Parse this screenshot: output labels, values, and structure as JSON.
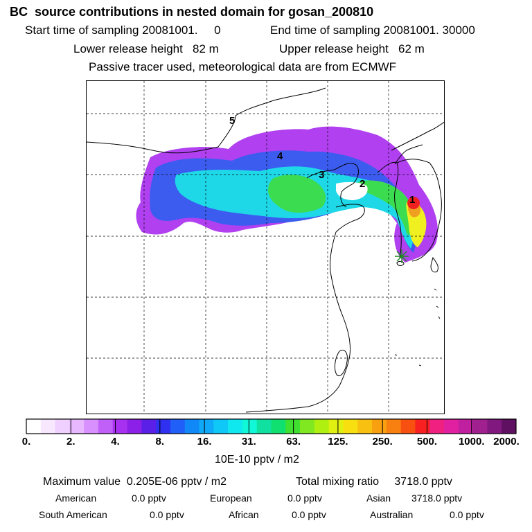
{
  "header": {
    "title": "BC  source contributions in nested domain for gosan_200810",
    "start_label": "Start time of sampling 20081001.     0",
    "end_label": "End time of sampling 20081001. 30000",
    "lower_release": "Lower release height   82 m",
    "upper_release": "Upper release height   62 m",
    "note": "Passive tracer used, meteorological data are from ECMWF"
  },
  "map": {
    "receptor_icon": "star-marker",
    "region_labels": [
      "1",
      "2",
      "3",
      "4",
      "5"
    ],
    "colors": {
      "plume_outer": "#b040f0",
      "plume_blue": "#3c5cf0",
      "plume_cyan": "#1ed8e8",
      "plume_green": "#3cdc50",
      "plume_yellow": "#f0f020",
      "plume_orange": "#f0a020",
      "plume_red": "#f02020",
      "plume_peak": "#e0189a"
    }
  },
  "colorbar": {
    "colors": [
      "#ffffff",
      "#f8e8ff",
      "#f0d0ff",
      "#e8b8ff",
      "#d890ff",
      "#c060f8",
      "#a830f0",
      "#8c20e8",
      "#5a20e8",
      "#3030f0",
      "#2060f8",
      "#1088f8",
      "#10a8f8",
      "#10c8f8",
      "#10e8f0",
      "#10f8d8",
      "#10e0a0",
      "#10e070",
      "#40e030",
      "#80e820",
      "#b0f010",
      "#e0f010",
      "#f8e010",
      "#f8c010",
      "#f8a010",
      "#f88010",
      "#f85010",
      "#f82020",
      "#f02080",
      "#e020a0",
      "#c020a0",
      "#a02090",
      "#801880",
      "#601060"
    ],
    "tick_labels": [
      "0.",
      "2.",
      "4.",
      "8.",
      "16.",
      "31.",
      "63.",
      "125.",
      "250.",
      "500.",
      "1000.",
      "2000."
    ],
    "units": "10E-10 pptv / m2"
  },
  "footer": {
    "max_value": "Maximum value  0.205E-06 pptv / m2",
    "total_mixing": "Total mixing ratio     3718.0 pptv",
    "american": "American",
    "american_val": "0.0 pptv",
    "european": "European",
    "european_val": "0.0 pptv",
    "asian": "Asian",
    "asian_val": "3718.0 pptv",
    "south_american": "South American",
    "south_american_val": "0.0 pptv",
    "african": "African",
    "african_val": "0.0 pptv",
    "australian": "Australian",
    "australian_val": "0.0 pptv"
  }
}
